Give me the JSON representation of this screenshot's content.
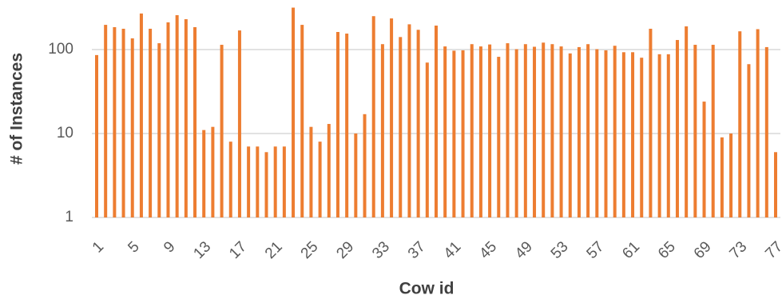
{
  "chart_data": {
    "type": "bar",
    "x_label": "Cow id",
    "y_label": "# of Instances",
    "categories": [
      "1",
      null,
      null,
      null,
      "5",
      null,
      null,
      null,
      "9",
      null,
      null,
      null,
      "13",
      null,
      null,
      null,
      "17",
      null,
      null,
      null,
      "21",
      null,
      null,
      null,
      "25",
      null,
      null,
      null,
      "29",
      null,
      null,
      null,
      "33",
      null,
      null,
      null,
      "37",
      null,
      null,
      null,
      "41",
      null,
      null,
      null,
      "45",
      null,
      null,
      null,
      "49",
      null,
      null,
      null,
      "53",
      null,
      null,
      null,
      "57",
      null,
      null,
      null,
      "61",
      null,
      null,
      null,
      "65",
      null,
      null,
      null,
      "69",
      null,
      null,
      null,
      "73",
      null,
      null,
      null,
      "77"
    ],
    "values": [
      86,
      197,
      185,
      177,
      136,
      269,
      177,
      119,
      211,
      257,
      230,
      185,
      11,
      12,
      114,
      8,
      169,
      7,
      7,
      6,
      7,
      7,
      316,
      197,
      12,
      8,
      13,
      162,
      155,
      10,
      17,
      250,
      116,
      235,
      141,
      200,
      172,
      70,
      193,
      109,
      97,
      98,
      116,
      109,
      115,
      82,
      119,
      101,
      116,
      108,
      121,
      116,
      109,
      90,
      107,
      116,
      101,
      98,
      111,
      93,
      93,
      80,
      177,
      88,
      88,
      130,
      189,
      114,
      24,
      114,
      9,
      10,
      165,
      67,
      175,
      107,
      6
    ],
    "color": "#ed7d31",
    "log_scale": true,
    "ylim": [
      1,
      1000
    ],
    "yticks": [
      1,
      10,
      100
    ],
    "grid": true
  }
}
